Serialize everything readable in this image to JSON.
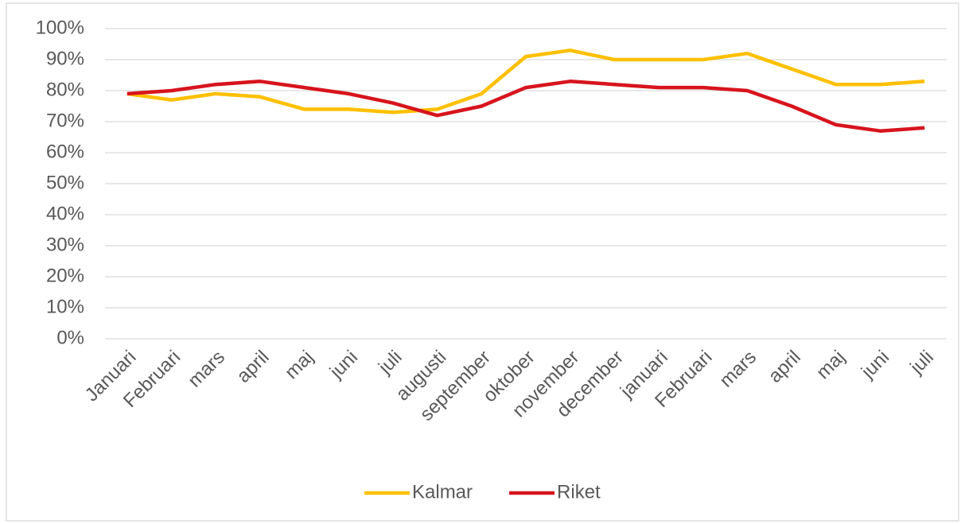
{
  "chart_data": {
    "type": "line",
    "categories": [
      "Januari",
      "Februari",
      "mars",
      "april",
      "maj",
      "juni",
      "juli",
      "augusti",
      "september",
      "oktober",
      "november",
      "december",
      "januari",
      "Februari",
      "mars",
      "april",
      "maj",
      "juni",
      "juli"
    ],
    "series": [
      {
        "name": "Kalmar",
        "color": "#ffc000",
        "values": [
          79,
          77,
          79,
          78,
          74,
          74,
          73,
          74,
          79,
          91,
          93,
          90,
          90,
          90,
          92,
          87,
          82,
          82,
          83
        ]
      },
      {
        "name": "Riket",
        "color": "#d7141d",
        "values": [
          79,
          80,
          82,
          83,
          81,
          79,
          76,
          72,
          75,
          81,
          83,
          82,
          81,
          81,
          80,
          75,
          69,
          67,
          68
        ]
      }
    ],
    "ylim": [
      0,
      100
    ],
    "yticks": [
      {
        "value": 0,
        "label": "0%"
      },
      {
        "value": 10,
        "label": "10%"
      },
      {
        "value": 20,
        "label": "20%"
      },
      {
        "value": 30,
        "label": "30%"
      },
      {
        "value": 40,
        "label": "40%"
      },
      {
        "value": 50,
        "label": "50%"
      },
      {
        "value": 60,
        "label": "60%"
      },
      {
        "value": 70,
        "label": "70%"
      },
      {
        "value": 80,
        "label": "80%"
      },
      {
        "value": 90,
        "label": "90%"
      },
      {
        "value": 100,
        "label": "100%"
      }
    ],
    "grid": true,
    "legend": "bottom"
  }
}
